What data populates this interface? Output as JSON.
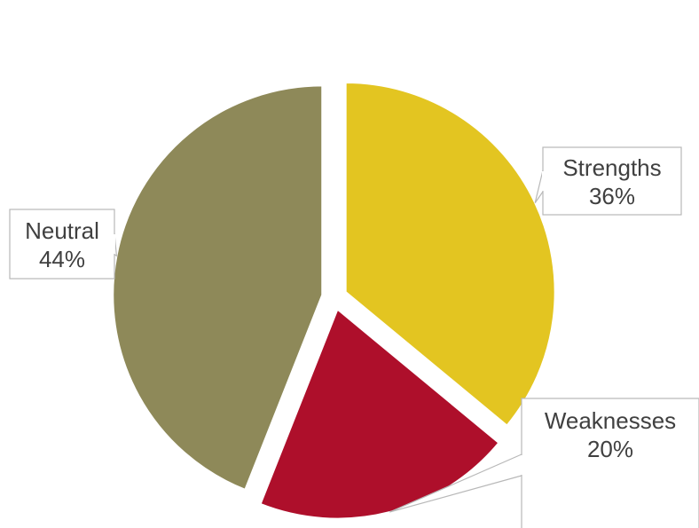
{
  "chart_data": {
    "type": "pie",
    "title": "",
    "slices": [
      {
        "label": "Strengths",
        "value": 36,
        "value_label": "36%",
        "color": "#E3C521"
      },
      {
        "label": "Weaknesses",
        "value": 20,
        "value_label": "20%",
        "color": "#AE0F2B"
      },
      {
        "label": "Neutral",
        "value": 44,
        "value_label": "44%",
        "color": "#8E8959"
      }
    ],
    "start_angle_deg": 0,
    "direction": "clockwise",
    "exploded": true,
    "legend": "none",
    "data_labels": "callouts"
  }
}
